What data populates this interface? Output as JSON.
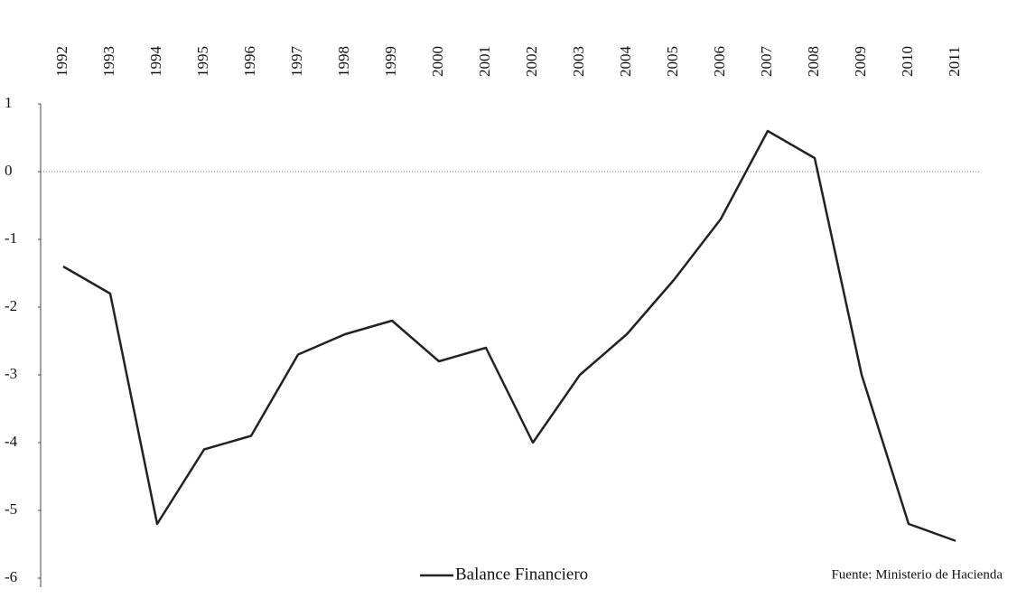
{
  "chart_data": {
    "type": "line",
    "categories": [
      "1992",
      "1993",
      "1994",
      "1995",
      "1996",
      "1997",
      "1998",
      "1999",
      "2000",
      "2001",
      "2002",
      "2003",
      "2004",
      "2005",
      "2006",
      "2007",
      "2008",
      "2009",
      "2010",
      "2011"
    ],
    "series": [
      {
        "name": "Balance Financiero",
        "color": "#222222",
        "values": [
          -1.4,
          -1.8,
          -5.2,
          -4.1,
          -3.9,
          -2.7,
          -2.4,
          -2.2,
          -2.8,
          -2.6,
          -4.0,
          -3.0,
          -2.4,
          -1.6,
          -0.7,
          0.6,
          0.2,
          -3.0,
          -5.2,
          -5.45
        ]
      }
    ],
    "ylim": [
      -6,
      1
    ],
    "yticks": [
      -6,
      -5,
      -4,
      -3,
      -2,
      -1,
      0,
      1
    ],
    "annotation": "Fuente: Ministerio de Hacienda",
    "legend": "bottom"
  }
}
